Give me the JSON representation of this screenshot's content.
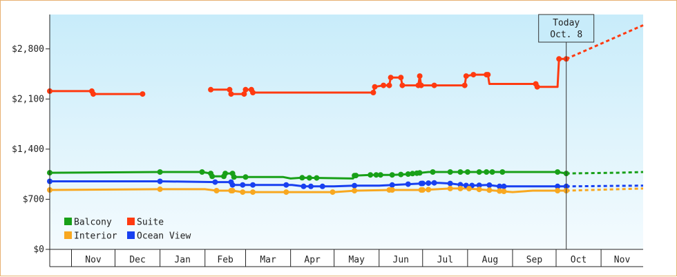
{
  "chart_data": {
    "type": "line",
    "title": "",
    "xlabel": "",
    "ylabel": "",
    "y_ticks": [
      0,
      700,
      1400,
      2100,
      2800
    ],
    "y_tick_labels": [
      "$0",
      "$700",
      "$1,400",
      "$2,100",
      "$2,800"
    ],
    "ylim": [
      0,
      3280
    ],
    "x_domain": [
      "2024-10-17",
      "2025-11-30"
    ],
    "month_labels": [
      "Nov",
      "Dec",
      "Jan",
      "Feb",
      "Mar",
      "Apr",
      "May",
      "Jun",
      "Jul",
      "Aug",
      "Sep",
      "Oct",
      "Nov"
    ],
    "month_starts": [
      "2024-11-01",
      "2024-12-01",
      "2025-01-01",
      "2025-02-01",
      "2025-03-01",
      "2025-04-01",
      "2025-05-01",
      "2025-06-01",
      "2025-07-01",
      "2025-08-01",
      "2025-09-01",
      "2025-10-01",
      "2025-11-01"
    ],
    "month_ends": [
      "2024-11-30",
      "2024-12-31",
      "2025-01-31",
      "2025-02-28",
      "2025-03-31",
      "2025-04-30",
      "2025-05-31",
      "2025-06-30",
      "2025-07-31",
      "2025-08-31",
      "2025-09-30",
      "2025-10-31",
      "2025-11-30"
    ],
    "grid": false,
    "legend_position": "bottom-left",
    "today": {
      "date": "2025-10-08",
      "label_line1": "Today",
      "label_line2": "Oct. 8"
    },
    "series": [
      {
        "name": "Suite",
        "color": "#ff3a10",
        "segments": [
          [
            [
              "2024-10-17",
              2210
            ],
            [
              "2024-11-15",
              2210
            ],
            [
              "2024-11-16",
              2170
            ],
            [
              "2024-12-20",
              2170
            ]
          ],
          [
            [
              "2025-02-05",
              2230
            ],
            [
              "2025-02-18",
              2230
            ],
            [
              "2025-02-19",
              2170
            ],
            [
              "2025-02-28",
              2170
            ],
            [
              "2025-03-01",
              2230
            ],
            [
              "2025-03-05",
              2230
            ],
            [
              "2025-03-06",
              2190
            ],
            [
              "2025-05-28",
              2190
            ],
            [
              "2025-05-29",
              2270
            ],
            [
              "2025-06-04",
              2290
            ],
            [
              "2025-06-08",
              2290
            ],
            [
              "2025-06-09",
              2400
            ],
            [
              "2025-06-16",
              2400
            ],
            [
              "2025-06-17",
              2290
            ],
            [
              "2025-06-28",
              2290
            ],
            [
              "2025-06-29",
              2420
            ],
            [
              "2025-06-30",
              2290
            ],
            [
              "2025-07-30",
              2290
            ],
            [
              "2025-07-31",
              2420
            ],
            [
              "2025-08-05",
              2440
            ],
            [
              "2025-08-15",
              2440
            ],
            [
              "2025-08-16",
              2310
            ],
            [
              "2025-09-17",
              2310
            ],
            [
              "2025-09-18",
              2270
            ],
            [
              "2025-10-02",
              2270
            ],
            [
              "2025-10-03",
              2660
            ],
            [
              "2025-10-08",
              2660
            ]
          ]
        ],
        "forecast": [
          [
            "2025-10-08",
            2660
          ],
          [
            "2025-11-30",
            3130
          ]
        ]
      },
      {
        "name": "Balcony",
        "color": "#18a018",
        "segments": [
          [
            [
              "2024-10-17",
              1070
            ],
            [
              "2025-01-01",
              1080
            ],
            [
              "2025-01-30",
              1080
            ],
            [
              "2025-02-05",
              1060
            ],
            [
              "2025-02-06",
              1020
            ],
            [
              "2025-02-14",
              1020
            ],
            [
              "2025-02-15",
              1060
            ],
            [
              "2025-02-20",
              1060
            ],
            [
              "2025-02-21",
              1010
            ],
            [
              "2025-03-01",
              1010
            ],
            [
              "2025-03-02",
              1010
            ],
            [
              "2025-03-27",
              1010
            ],
            [
              "2025-04-01",
              990
            ],
            [
              "2025-04-09",
              1000
            ],
            [
              "2025-05-14",
              990
            ],
            [
              "2025-05-15",
              1030
            ],
            [
              "2025-05-26",
              1040
            ],
            [
              "2025-06-10",
              1040
            ],
            [
              "2025-06-20",
              1050
            ],
            [
              "2025-06-30",
              1070
            ],
            [
              "2025-07-05",
              1080
            ],
            [
              "2025-07-30",
              1080
            ],
            [
              "2025-08-15",
              1080
            ],
            [
              "2025-10-02",
              1080
            ],
            [
              "2025-10-08",
              1060
            ]
          ]
        ],
        "forecast": [
          [
            "2025-10-08",
            1060
          ],
          [
            "2025-11-12",
            1070
          ],
          [
            "2025-11-30",
            1080
          ]
        ]
      },
      {
        "name": "Ocean View",
        "color": "#1840f0",
        "segments": [
          [
            [
              "2024-10-17",
              950
            ],
            [
              "2025-01-01",
              950
            ],
            [
              "2025-02-08",
              940
            ],
            [
              "2025-02-19",
              940
            ],
            [
              "2025-02-20",
              900
            ],
            [
              "2025-04-02",
              900
            ],
            [
              "2025-04-10",
              880
            ],
            [
              "2025-05-01",
              880
            ],
            [
              "2025-05-15",
              890
            ],
            [
              "2025-06-01",
              890
            ],
            [
              "2025-06-20",
              910
            ],
            [
              "2025-07-10",
              930
            ],
            [
              "2025-07-20",
              920
            ],
            [
              "2025-08-01",
              890
            ],
            [
              "2025-08-15",
              900
            ],
            [
              "2025-08-23",
              880
            ],
            [
              "2025-10-08",
              880
            ]
          ]
        ],
        "forecast": [
          [
            "2025-10-08",
            880
          ],
          [
            "2025-11-30",
            890
          ]
        ]
      },
      {
        "name": "Interior",
        "color": "#f8a820",
        "segments": [
          [
            [
              "2024-10-17",
              830
            ],
            [
              "2025-01-01",
              840
            ],
            [
              "2025-02-01",
              840
            ],
            [
              "2025-02-09",
              820
            ],
            [
              "2025-02-20",
              820
            ],
            [
              "2025-02-27",
              800
            ],
            [
              "2025-04-01",
              800
            ],
            [
              "2025-04-05",
              800
            ],
            [
              "2025-05-01",
              800
            ],
            [
              "2025-05-16",
              820
            ],
            [
              "2025-06-10",
              830
            ],
            [
              "2025-07-01",
              830
            ],
            [
              "2025-07-20",
              850
            ],
            [
              "2025-08-01",
              850
            ],
            [
              "2025-08-20",
              820
            ],
            [
              "2025-09-01",
              800
            ],
            [
              "2025-09-15",
              820
            ],
            [
              "2025-10-08",
              820
            ]
          ]
        ],
        "forecast": [
          [
            "2025-10-08",
            820
          ],
          [
            "2025-11-30",
            850
          ]
        ]
      }
    ],
    "markers": {
      "Suite": [
        "2024-10-17",
        "2024-11-15",
        "2024-11-16",
        "2024-12-20",
        "2025-02-05",
        "2025-02-18",
        "2025-02-19",
        "2025-02-28",
        "2025-03-01",
        "2025-03-05",
        "2025-03-06",
        "2025-05-28",
        "2025-05-29",
        "2025-06-04",
        "2025-06-08",
        "2025-06-09",
        "2025-06-16",
        "2025-06-17",
        "2025-06-28",
        "2025-06-29",
        "2025-06-30",
        "2025-07-09",
        "2025-07-30",
        "2025-07-31",
        "2025-08-05",
        "2025-08-14",
        "2025-08-15",
        "2025-09-17",
        "2025-09-18",
        "2025-10-03",
        "2025-10-08"
      ],
      "Balcony": [
        "2024-10-17",
        "2025-01-01",
        "2025-01-30",
        "2025-02-05",
        "2025-02-06",
        "2025-02-14",
        "2025-02-15",
        "2025-02-20",
        "2025-02-21",
        "2025-03-01",
        "2025-04-09",
        "2025-04-14",
        "2025-04-19",
        "2025-05-15",
        "2025-05-16",
        "2025-05-26",
        "2025-05-30",
        "2025-06-02",
        "2025-06-10",
        "2025-06-16",
        "2025-06-21",
        "2025-06-24",
        "2025-06-27",
        "2025-06-29",
        "2025-07-08",
        "2025-07-20",
        "2025-07-27",
        "2025-08-01",
        "2025-08-09",
        "2025-08-14",
        "2025-08-18",
        "2025-08-25",
        "2025-10-02",
        "2025-10-08"
      ],
      "Ocean View": [
        "2024-10-17",
        "2025-01-01",
        "2025-02-08",
        "2025-02-19",
        "2025-02-20",
        "2025-02-27",
        "2025-03-06",
        "2025-03-29",
        "2025-04-10",
        "2025-04-15",
        "2025-04-23",
        "2025-05-15",
        "2025-06-10",
        "2025-06-21",
        "2025-06-30",
        "2025-07-01",
        "2025-07-05",
        "2025-07-09",
        "2025-07-20",
        "2025-07-27",
        "2025-07-31",
        "2025-08-04",
        "2025-08-09",
        "2025-08-16",
        "2025-08-23",
        "2025-08-26",
        "2025-10-02",
        "2025-10-08"
      ],
      "Interior": [
        "2024-10-17",
        "2025-01-01",
        "2025-02-09",
        "2025-02-19",
        "2025-02-20",
        "2025-02-27",
        "2025-03-06",
        "2025-03-29",
        "2025-04-30",
        "2025-05-15",
        "2025-06-08",
        "2025-06-10",
        "2025-06-30",
        "2025-07-01",
        "2025-07-05",
        "2025-07-20",
        "2025-07-27",
        "2025-08-02",
        "2025-08-09",
        "2025-08-16",
        "2025-08-23",
        "2025-08-26",
        "2025-10-02",
        "2025-10-08"
      ]
    },
    "legend": [
      {
        "name": "Balcony",
        "color": "#18a018"
      },
      {
        "name": "Suite",
        "color": "#ff3a10"
      },
      {
        "name": "Interior",
        "color": "#f8a820"
      },
      {
        "name": "Ocean View",
        "color": "#1840f0"
      }
    ]
  }
}
